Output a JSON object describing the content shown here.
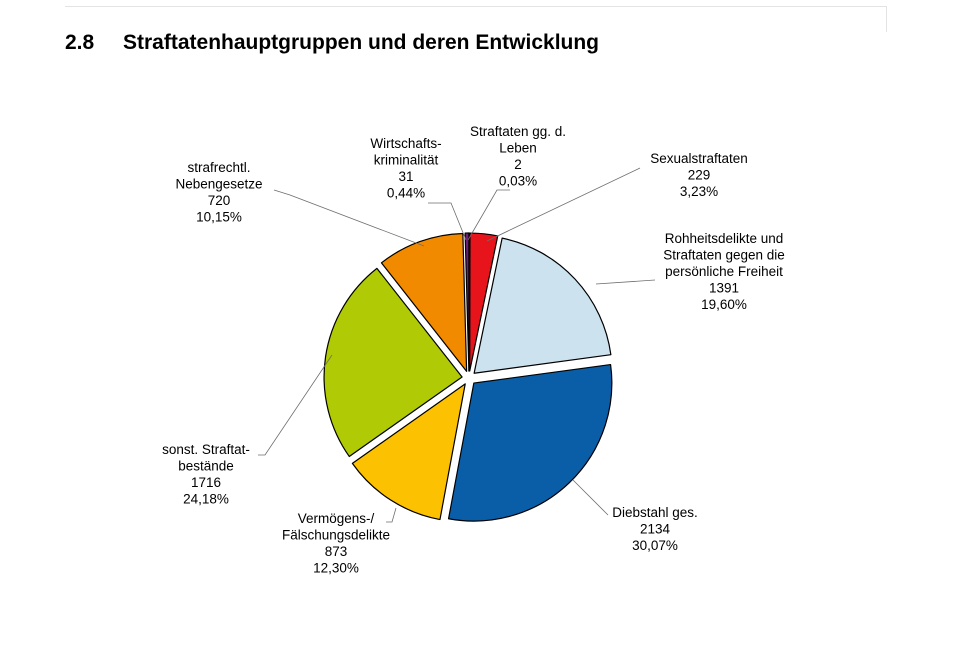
{
  "section": {
    "number": "2.8",
    "title": "Straftatenhauptgruppen und deren Entwicklung"
  },
  "chart_data": {
    "type": "pie",
    "title": "",
    "slices": [
      {
        "name": "Straftaten gg. d. Leben",
        "label_lines": [
          "Straftaten gg. d.",
          "Leben"
        ],
        "value": 2,
        "percent_label": "0,03%",
        "color": "#7b1a3c"
      },
      {
        "name": "Sexualstraftaten",
        "label_lines": [
          "Sexualstraftaten"
        ],
        "value": 229,
        "percent_label": "3,23%",
        "color": "#e8141c"
      },
      {
        "name": "Rohheitsdelikte und Straftaten gegen die persönliche Freiheit",
        "label_lines": [
          "Rohheitsdelikte und",
          "Straftaten gegen die",
          "persönliche Freiheit"
        ],
        "value": 1391,
        "percent_label": "19,60%",
        "color": "#cde2ef"
      },
      {
        "name": "Diebstahl ges.",
        "label_lines": [
          "Diebstahl ges."
        ],
        "value": 2134,
        "percent_label": "30,07%",
        "color": "#0a5ea8"
      },
      {
        "name": "Vermögens-/ Fälschungsdelikte",
        "label_lines": [
          "Vermögens-/",
          "Fälschungsdelikte"
        ],
        "value": 873,
        "percent_label": "12,30%",
        "color": "#fcc100"
      },
      {
        "name": "sonst. Straftatbestände",
        "label_lines": [
          "sonst. Straftat-",
          "bestände"
        ],
        "value": 1716,
        "percent_label": "24,18%",
        "color": "#b0cb06"
      },
      {
        "name": "strafrechtl. Nebengesetze",
        "label_lines": [
          "strafrechtl.",
          "Nebengesetze"
        ],
        "value": 720,
        "percent_label": "10,15%",
        "color": "#f28a00"
      },
      {
        "name": "Wirtschaftskriminalität",
        "label_lines": [
          "Wirtschafts-",
          "kriminalität"
        ],
        "value": 31,
        "percent_label": "0,44%",
        "color": "#6e1e78"
      }
    ]
  }
}
